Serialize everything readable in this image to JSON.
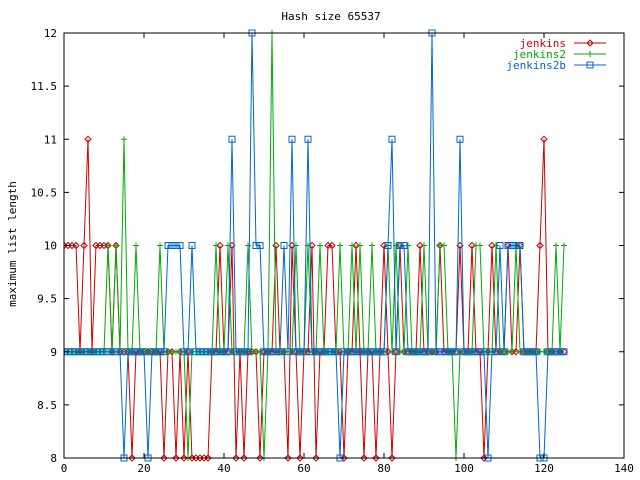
{
  "chart_data": {
    "type": "line",
    "title": "Hash size 65537",
    "xlabel": "",
    "ylabel": "maximum list length",
    "xlim": [
      0,
      140
    ],
    "ylim": [
      8,
      12
    ],
    "x_ticks": [
      0,
      20,
      40,
      60,
      80,
      100,
      120,
      140
    ],
    "y_ticks": [
      8,
      8.5,
      9,
      9.5,
      10,
      10.5,
      11,
      11.5,
      12
    ],
    "x_tick_labels": [
      "0",
      "20",
      "40",
      "60",
      "80",
      "100",
      "120",
      "140"
    ],
    "y_tick_labels": [
      "8",
      "8.5",
      "9",
      "9.5",
      "10",
      "10.5",
      "11",
      "11.5",
      "12"
    ],
    "grid": false,
    "legend": "top-right",
    "x": [
      0,
      1,
      2,
      3,
      4,
      5,
      6,
      7,
      8,
      9,
      10,
      11,
      12,
      13,
      14,
      15,
      16,
      17,
      18,
      19,
      20,
      21,
      22,
      23,
      24,
      25,
      26,
      27,
      28,
      29,
      30,
      31,
      32,
      33,
      34,
      35,
      36,
      37,
      38,
      39,
      40,
      41,
      42,
      43,
      44,
      45,
      46,
      47,
      48,
      49,
      50,
      51,
      52,
      53,
      54,
      55,
      56,
      57,
      58,
      59,
      60,
      61,
      62,
      63,
      64,
      65,
      66,
      67,
      68,
      69,
      70,
      71,
      72,
      73,
      74,
      75,
      76,
      77,
      78,
      79,
      80,
      81,
      82,
      83,
      84,
      85,
      86,
      87,
      88,
      89,
      90,
      91,
      92,
      93,
      94,
      95,
      96,
      97,
      98,
      99,
      100,
      101,
      102,
      103,
      104,
      105,
      106,
      107,
      108,
      109,
      110,
      111,
      112,
      113,
      114,
      115,
      116,
      117,
      118,
      119,
      120,
      121,
      122,
      123,
      124,
      125
    ],
    "series": [
      {
        "name": "jenkins",
        "color": "#cc0000",
        "marker": "diamond",
        "values": [
          10,
          10,
          10,
          10,
          9,
          10,
          11,
          9,
          10,
          10,
          10,
          10,
          9,
          10,
          9,
          9,
          9,
          8,
          9,
          9,
          9,
          9,
          9,
          9,
          9,
          8,
          9,
          9,
          8,
          9,
          8,
          9,
          8,
          8,
          8,
          8,
          8,
          9,
          9,
          10,
          9,
          9,
          10,
          8,
          9,
          8,
          9,
          9,
          9,
          8,
          9,
          9,
          9,
          10,
          9,
          9,
          8,
          10,
          9,
          8,
          9,
          9,
          10,
          8,
          9,
          9,
          10,
          10,
          9,
          9,
          8,
          9,
          9,
          10,
          9,
          8,
          9,
          9,
          8,
          9,
          10,
          9,
          8,
          9,
          10,
          9,
          9,
          9,
          9,
          10,
          9,
          9,
          9,
          9,
          10,
          9,
          9,
          9,
          9,
          10,
          9,
          9,
          10,
          9,
          9,
          8,
          9,
          10,
          9,
          9,
          9,
          10,
          9,
          9,
          10,
          9,
          9,
          9,
          9,
          10,
          11,
          9,
          9,
          9,
          9,
          9
        ]
      },
      {
        "name": "jenkins2",
        "color": "#00aa00",
        "marker": "plus",
        "values": [
          9,
          9,
          9,
          9,
          9,
          9,
          9,
          9,
          9,
          9,
          9,
          10,
          9,
          10,
          9,
          11,
          9,
          9,
          10,
          9,
          9,
          9,
          9,
          9,
          10,
          9,
          9,
          9,
          9,
          9,
          9,
          8,
          9,
          9,
          9,
          9,
          9,
          9,
          10,
          9,
          9,
          10,
          9,
          9,
          9,
          9,
          10,
          9,
          9,
          9,
          8,
          9,
          12,
          9,
          9,
          9,
          9,
          9,
          10,
          9,
          9,
          10,
          9,
          9,
          10,
          9,
          9,
          9,
          9,
          10,
          9,
          9,
          10,
          9,
          10,
          9,
          9,
          10,
          9,
          9,
          9,
          10,
          9,
          10,
          9,
          9,
          10,
          9,
          9,
          9,
          10,
          9,
          9,
          9,
          10,
          10,
          9,
          9,
          8,
          9,
          9,
          9,
          9,
          10,
          10,
          9,
          9,
          9,
          10,
          9,
          9,
          9,
          9,
          10,
          9,
          9,
          9,
          9,
          9,
          9,
          9,
          9,
          9,
          10,
          9,
          10
        ]
      },
      {
        "name": "jenkins2b",
        "color": "#0066cc",
        "marker": "square",
        "values": [
          9,
          9,
          9,
          9,
          9,
          9,
          9,
          9,
          9,
          9,
          9,
          9,
          9,
          9,
          9,
          8,
          9,
          9,
          9,
          9,
          9,
          8,
          9,
          9,
          9,
          9,
          10,
          10,
          10,
          10,
          9,
          9,
          10,
          9,
          9,
          9,
          9,
          9,
          9,
          9,
          9,
          9,
          11,
          9,
          9,
          9,
          9,
          12,
          10,
          10,
          9,
          9,
          9,
          9,
          9,
          10,
          9,
          11,
          9,
          9,
          9,
          11,
          9,
          9,
          9,
          9,
          9,
          9,
          9,
          8,
          9,
          9,
          9,
          9,
          9,
          9,
          9,
          9,
          9,
          9,
          9,
          10,
          11,
          9,
          10,
          10,
          9,
          9,
          9,
          9,
          9,
          9,
          12,
          9,
          9,
          9,
          9,
          9,
          9,
          11,
          9,
          9,
          9,
          9,
          9,
          9,
          8,
          9,
          9,
          10,
          9,
          10,
          10,
          10,
          10,
          9,
          9,
          9,
          9,
          8,
          8,
          9,
          9,
          9,
          9,
          9
        ]
      }
    ]
  }
}
